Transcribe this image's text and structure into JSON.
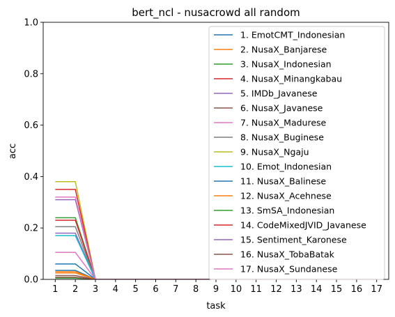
{
  "chart_data": {
    "type": "line",
    "title": "bert_ncl - nusacrowd all random",
    "xlabel": "task",
    "ylabel": "acc",
    "x": [
      1,
      2,
      3,
      4,
      5,
      6,
      7,
      8,
      9,
      10,
      11,
      12,
      13,
      14,
      15,
      16,
      17
    ],
    "ylim": [
      0,
      1.0
    ],
    "yticks": [
      "0.0",
      "0.2",
      "0.4",
      "0.6",
      "0.8",
      "1.0"
    ],
    "grid": false,
    "legend_position": "upper right",
    "colors": [
      "#1f77b4",
      "#ff7f0e",
      "#2ca02c",
      "#d62728",
      "#9467bd",
      "#8c564b",
      "#e377c2",
      "#7f7f7f",
      "#bcbd22",
      "#17becf",
      "#1f77b4",
      "#ff7f0e",
      "#2ca02c",
      "#d62728",
      "#9467bd",
      "#8c564b",
      "#e377c2"
    ],
    "series": [
      {
        "name": "1. EmotCMT_Indonesian",
        "values": [
          0.06,
          0.06,
          0,
          0,
          0,
          0,
          0,
          0,
          0,
          0,
          0,
          0,
          0,
          0,
          0,
          0,
          0
        ]
      },
      {
        "name": "2. NusaX_Banjarese",
        "values": [
          0.025,
          0.025,
          0,
          0,
          0,
          0,
          0,
          0,
          0,
          0,
          0,
          0,
          0,
          0,
          0,
          0,
          0
        ]
      },
      {
        "name": "3. NusaX_Indonesian",
        "values": [
          0.24,
          0.24,
          0,
          0,
          0,
          0,
          0,
          0,
          0,
          0,
          0,
          0,
          0,
          0,
          0,
          0,
          0
        ]
      },
      {
        "name": "4. NusaX_Minangkabau",
        "values": [
          0.23,
          0.23,
          0,
          0,
          0,
          0,
          0,
          0,
          0,
          0,
          0,
          0,
          0,
          0,
          0,
          0,
          0
        ]
      },
      {
        "name": "5. IMDb_Javanese",
        "values": [
          0.18,
          0.18,
          0,
          0,
          0,
          0,
          0,
          0,
          0,
          0,
          0,
          0,
          0,
          0,
          0,
          0,
          0
        ]
      },
      {
        "name": "6. NusaX_Javanese",
        "values": [
          0.015,
          0.015,
          0,
          0,
          0,
          0,
          0,
          0,
          0,
          0,
          0,
          0,
          0,
          0,
          0,
          0,
          0
        ]
      },
      {
        "name": "7. NusaX_Madurese",
        "values": [
          0.105,
          0.105,
          0,
          0,
          0,
          0,
          0,
          0,
          0,
          0,
          0,
          0,
          0,
          0,
          0,
          0,
          0
        ]
      },
      {
        "name": "8. NusaX_Buginese",
        "values": [
          0.205,
          0.205,
          0,
          0,
          0,
          0,
          0,
          0,
          0,
          0,
          0,
          0,
          0,
          0,
          0,
          0,
          0
        ]
      },
      {
        "name": "9. NusaX_Ngaju",
        "values": [
          0.38,
          0.38,
          0,
          0,
          0,
          0,
          0,
          0,
          0,
          0,
          0,
          0,
          0,
          0,
          0,
          0,
          0
        ]
      },
      {
        "name": "10. Emot_Indonesian",
        "values": [
          0.17,
          0.17,
          0,
          0,
          0,
          0,
          0,
          0,
          0,
          0,
          0,
          0,
          0,
          0,
          0,
          0,
          0
        ]
      },
      {
        "name": "11. NusaX_Balinese",
        "values": [
          0.035,
          0.035,
          0,
          0,
          0,
          0,
          0,
          0,
          0,
          0,
          0,
          0,
          0,
          0,
          0,
          0,
          0
        ]
      },
      {
        "name": "12. NusaX_Acehnese",
        "values": [
          0.03,
          0.03,
          0,
          0,
          0,
          0,
          0,
          0,
          0,
          0,
          0,
          0,
          0,
          0,
          0,
          0,
          0
        ]
      },
      {
        "name": "13. SmSA_Indonesian",
        "values": [
          0.005,
          0.005,
          0,
          0,
          0,
          0,
          0,
          0,
          0,
          0,
          0,
          0,
          0,
          0,
          0,
          0,
          0
        ]
      },
      {
        "name": "14. CodeMixedJVID_Javanese",
        "values": [
          0.35,
          0.35,
          0,
          0,
          0,
          0,
          0,
          0,
          0,
          0,
          0,
          0,
          0,
          0,
          0,
          0,
          0
        ]
      },
      {
        "name": "15. Sentiment_Karonese",
        "values": [
          0.31,
          0.31,
          0,
          0,
          0,
          0,
          0,
          0,
          0,
          0,
          0,
          0,
          0,
          0,
          0,
          0,
          0
        ]
      },
      {
        "name": "16. NusaX_TobaBatak",
        "values": [
          0.008,
          0.008,
          0,
          0,
          0,
          0,
          0,
          0,
          0,
          0,
          0,
          0,
          0,
          0,
          0,
          0,
          0
        ]
      },
      {
        "name": "17. NusaX_Sundanese",
        "values": [
          0.32,
          0.32,
          0,
          0,
          0,
          0,
          0,
          0,
          0,
          0,
          0,
          0,
          0,
          0,
          0,
          0,
          0
        ]
      }
    ]
  }
}
